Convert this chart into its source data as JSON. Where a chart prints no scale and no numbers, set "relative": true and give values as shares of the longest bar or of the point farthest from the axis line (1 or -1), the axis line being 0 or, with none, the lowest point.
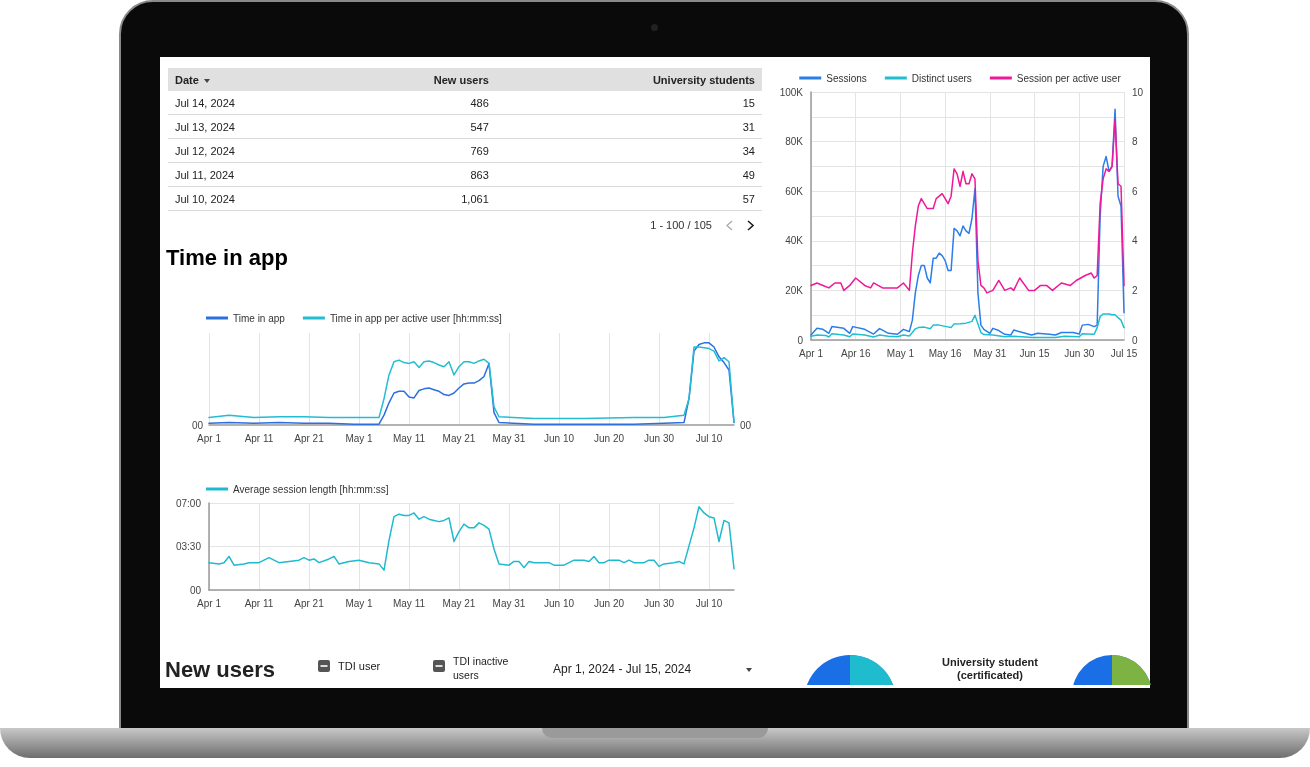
{
  "chart_data": [
    {
      "type": "other",
      "xlabel": "Date",
      "data_labels": true,
      "categories": [
        "Jul 14, 2024",
        "Jul 13, 2024",
        "Jul 12, 2024",
        "Jul 11, 2024",
        "Jul 10, 2024"
      ],
      "series": [
        {
          "name": "New users",
          "values": [
            486,
            547,
            769,
            863,
            1061
          ],
          "value_labels": [
            "486",
            "547",
            "769",
            "863",
            "1,061"
          ]
        },
        {
          "name": "University students",
          "values": [
            15,
            31,
            34,
            49,
            57
          ],
          "value_labels": [
            "15",
            "31",
            "34",
            "49",
            "57"
          ]
        }
      ],
      "annotations": [
        "1 - 100 / 105"
      ]
    },
    {
      "type": "line",
      "legend": "top",
      "grid": true,
      "marker": "none",
      "xlim": [
        "2024-04-01",
        "2024-07-15"
      ],
      "xticks": [
        {
          "value": "2024-04-01",
          "label": "Apr 1"
        },
        {
          "value": "2024-04-16",
          "label": "Apr 16"
        },
        {
          "value": "2024-05-01",
          "label": "May 1"
        },
        {
          "value": "2024-05-16",
          "label": "May 16"
        },
        {
          "value": "2024-05-31",
          "label": "May 31"
        },
        {
          "value": "2024-06-15",
          "label": "Jun 15"
        },
        {
          "value": "2024-06-30",
          "label": "Jun 30"
        },
        {
          "value": "2024-07-15",
          "label": "Jul 15"
        }
      ],
      "ylim": [
        0,
        100000
      ],
      "yticks": [
        {
          "value": 0,
          "label": "0"
        },
        {
          "value": 10000,
          "label": null
        },
        {
          "value": 20000,
          "label": "20K"
        },
        {
          "value": 30000,
          "label": null
        },
        {
          "value": 40000,
          "label": "40K"
        },
        {
          "value": 50000,
          "label": null
        },
        {
          "value": 60000,
          "label": "60K"
        },
        {
          "value": 70000,
          "label": null
        },
        {
          "value": 80000,
          "label": "80K"
        },
        {
          "value": 90000,
          "label": null
        },
        {
          "value": 100000,
          "label": "100K"
        }
      ],
      "y2lim": [
        0,
        10
      ],
      "y2ticks": [
        0,
        2,
        4,
        6,
        8,
        10
      ],
      "series": [
        {
          "name": "Sessions",
          "color": "#2b7de9",
          "x": [
            "2024-04-01",
            "2024-04-03",
            "2024-04-05",
            "2024-04-07",
            "2024-04-08",
            "2024-04-12",
            "2024-04-14",
            "2024-04-15",
            "2024-04-19",
            "2024-04-22",
            "2024-04-24",
            "2024-04-27",
            "2024-04-30",
            "2024-05-02",
            "2024-05-04",
            "2024-05-05",
            "2024-05-06",
            "2024-05-07",
            "2024-05-08",
            "2024-05-09",
            "2024-05-10",
            "2024-05-11",
            "2024-05-12",
            "2024-05-13",
            "2024-05-14",
            "2024-05-15",
            "2024-05-16",
            "2024-05-17",
            "2024-05-18",
            "2024-05-19",
            "2024-05-20",
            "2024-05-21",
            "2024-05-22",
            "2024-05-23",
            "2024-05-24",
            "2024-05-25",
            "2024-05-26",
            "2024-05-27",
            "2024-05-28",
            "2024-05-29",
            "2024-05-31",
            "2024-06-01",
            "2024-06-03",
            "2024-06-05",
            "2024-06-07",
            "2024-06-08",
            "2024-06-11",
            "2024-06-14",
            "2024-06-16",
            "2024-06-20",
            "2024-06-22",
            "2024-06-24",
            "2024-06-28",
            "2024-06-30",
            "2024-07-01",
            "2024-07-03",
            "2024-07-05",
            "2024-07-06",
            "2024-07-07",
            "2024-07-08",
            "2024-07-09",
            "2024-07-10",
            "2024-07-11",
            "2024-07-12",
            "2024-07-13",
            "2024-07-14",
            "2024-07-15"
          ],
          "values": [
            2000,
            4700,
            4300,
            2700,
            5400,
            4700,
            2700,
            5400,
            4300,
            2400,
            4600,
            2700,
            2300,
            4300,
            3400,
            8000,
            19000,
            26000,
            30000,
            30000,
            25000,
            23000,
            33000,
            33000,
            35000,
            34000,
            32000,
            28000,
            28000,
            45000,
            44000,
            42000,
            46000,
            44000,
            43000,
            49000,
            61000,
            19000,
            6000,
            4300,
            2700,
            4700,
            3800,
            2300,
            2000,
            4000,
            3000,
            2000,
            2700,
            2300,
            2000,
            3000,
            3000,
            2400,
            6000,
            6300,
            5400,
            6000,
            50000,
            70000,
            74000,
            68000,
            70000,
            93000,
            58000,
            54000,
            11000
          ]
        },
        {
          "name": "Distinct users",
          "color": "#1fbfd0",
          "x": [
            "2024-04-01",
            "2024-04-03",
            "2024-04-06",
            "2024-04-07",
            "2024-04-08",
            "2024-04-12",
            "2024-04-14",
            "2024-04-15",
            "2024-04-19",
            "2024-04-22",
            "2024-04-24",
            "2024-04-27",
            "2024-04-30",
            "2024-05-02",
            "2024-05-04",
            "2024-05-05",
            "2024-05-06",
            "2024-05-07",
            "2024-05-09",
            "2024-05-11",
            "2024-05-12",
            "2024-05-14",
            "2024-05-16",
            "2024-05-18",
            "2024-05-19",
            "2024-05-21",
            "2024-05-23",
            "2024-05-25",
            "2024-05-26",
            "2024-05-27",
            "2024-05-28",
            "2024-05-29",
            "2024-06-01",
            "2024-06-05",
            "2024-06-08",
            "2024-06-11",
            "2024-06-14",
            "2024-06-18",
            "2024-06-22",
            "2024-06-25",
            "2024-06-30",
            "2024-07-01",
            "2024-07-05",
            "2024-07-06",
            "2024-07-07",
            "2024-07-08",
            "2024-07-10",
            "2024-07-11",
            "2024-07-12",
            "2024-07-13",
            "2024-07-14",
            "2024-07-15"
          ],
          "values": [
            1500,
            2000,
            1800,
            1200,
            2500,
            2000,
            1300,
            2400,
            2000,
            1200,
            2000,
            1500,
            1300,
            2000,
            1600,
            3000,
            4500,
            5000,
            5200,
            4500,
            6000,
            6000,
            5500,
            5000,
            6500,
            6600,
            6800,
            7500,
            10000,
            6500,
            3000,
            2200,
            2000,
            1300,
            1500,
            1300,
            1000,
            1000,
            1000,
            1500,
            1300,
            2500,
            2300,
            5000,
            9500,
            10500,
            10500,
            10200,
            10200,
            9000,
            8000,
            5000
          ]
        },
        {
          "name": "Session per active user",
          "color": "#f0189a",
          "axis": "y2",
          "x": [
            "2024-04-01",
            "2024-04-03",
            "2024-04-05",
            "2024-04-07",
            "2024-04-09",
            "2024-04-11",
            "2024-04-12",
            "2024-04-14",
            "2024-04-16",
            "2024-04-19",
            "2024-04-21",
            "2024-04-22",
            "2024-04-25",
            "2024-04-28",
            "2024-04-30",
            "2024-05-02",
            "2024-05-04",
            "2024-05-05",
            "2024-05-06",
            "2024-05-07",
            "2024-05-08",
            "2024-05-09",
            "2024-05-10",
            "2024-05-12",
            "2024-05-13",
            "2024-05-15",
            "2024-05-17",
            "2024-05-18",
            "2024-05-19",
            "2024-05-20",
            "2024-05-21",
            "2024-05-22",
            "2024-05-23",
            "2024-05-24",
            "2024-05-25",
            "2024-05-26",
            "2024-05-27",
            "2024-05-28",
            "2024-05-29",
            "2024-05-30",
            "2024-06-01",
            "2024-06-03",
            "2024-06-05",
            "2024-06-07",
            "2024-06-08",
            "2024-06-10",
            "2024-06-13",
            "2024-06-15",
            "2024-06-17",
            "2024-06-19",
            "2024-06-21",
            "2024-06-24",
            "2024-06-27",
            "2024-06-29",
            "2024-07-02",
            "2024-07-04",
            "2024-07-05",
            "2024-07-06",
            "2024-07-07",
            "2024-07-08",
            "2024-07-09",
            "2024-07-10",
            "2024-07-11",
            "2024-07-12",
            "2024-07-13",
            "2024-07-14",
            "2024-07-15"
          ],
          "values": [
            2.2,
            2.3,
            2.2,
            2.1,
            2.3,
            2.3,
            2.0,
            2.2,
            2.5,
            2.2,
            2.1,
            2.3,
            2.1,
            2.1,
            2.1,
            2.3,
            2.0,
            3.5,
            4.6,
            5.4,
            5.7,
            5.5,
            5.3,
            5.3,
            5.7,
            5.9,
            5.5,
            5.8,
            6.9,
            6.7,
            6.2,
            6.8,
            6.3,
            6.3,
            6.7,
            6.5,
            3.2,
            2.2,
            2.1,
            1.9,
            2.0,
            2.4,
            2.0,
            2.1,
            2.0,
            2.5,
            2.0,
            2.0,
            2.2,
            2.2,
            2.0,
            2.3,
            2.2,
            2.4,
            2.6,
            2.7,
            2.5,
            2.6,
            5.5,
            6.5,
            6.9,
            6.8,
            7.0,
            8.9,
            6.3,
            6.2,
            2.2
          ]
        }
      ]
    },
    {
      "type": "line",
      "title": "Time in app",
      "relative": true,
      "legend": "top left",
      "grid": "x",
      "marker": "none",
      "xlim": [
        "2024-04-01",
        "2024-07-15"
      ],
      "xticks": [
        {
          "value": "2024-04-01",
          "label": "Apr 1"
        },
        {
          "value": "2024-04-11",
          "label": "Apr 11"
        },
        {
          "value": "2024-04-21",
          "label": "Apr 21"
        },
        {
          "value": "2024-05-01",
          "label": "May 1"
        },
        {
          "value": "2024-05-11",
          "label": "May 11"
        },
        {
          "value": "2024-05-21",
          "label": "May 21"
        },
        {
          "value": "2024-05-31",
          "label": "May 31"
        },
        {
          "value": "2024-06-10",
          "label": "Jun 10"
        },
        {
          "value": "2024-06-20",
          "label": "Jun 20"
        },
        {
          "value": "2024-06-30",
          "label": "Jun 30"
        },
        {
          "value": "2024-07-10",
          "label": "Jul 10"
        }
      ],
      "annotations": [
        {
          "text": "00",
          "x": "2024-04-01",
          "y": 0
        },
        {
          "text": "00",
          "x": "2024-07-15",
          "y": 0
        }
      ],
      "series": [
        {
          "name": "Time in app",
          "color": "#2b6fe0",
          "x": [
            "2024-04-01",
            "2024-04-05",
            "2024-04-10",
            "2024-04-15",
            "2024-04-20",
            "2024-04-25",
            "2024-04-30",
            "2024-05-05",
            "2024-05-06",
            "2024-05-07",
            "2024-05-08",
            "2024-05-09",
            "2024-05-10",
            "2024-05-11",
            "2024-05-12",
            "2024-05-13",
            "2024-05-14",
            "2024-05-15",
            "2024-05-16",
            "2024-05-17",
            "2024-05-18",
            "2024-05-19",
            "2024-05-20",
            "2024-05-21",
            "2024-05-22",
            "2024-05-23",
            "2024-05-24",
            "2024-05-25",
            "2024-05-26",
            "2024-05-27",
            "2024-05-28",
            "2024-05-29",
            "2024-06-05",
            "2024-06-15",
            "2024-06-25",
            "2024-07-01",
            "2024-07-05",
            "2024-07-06",
            "2024-07-07",
            "2024-07-08",
            "2024-07-09",
            "2024-07-10",
            "2024-07-11",
            "2024-07-12",
            "2024-07-13",
            "2024-07-14",
            "2024-07-15"
          ],
          "values": [
            0.02,
            0.03,
            0.02,
            0.03,
            0.02,
            0.02,
            0.01,
            0.01,
            0.12,
            0.27,
            0.39,
            0.41,
            0.41,
            0.34,
            0.33,
            0.42,
            0.44,
            0.45,
            0.43,
            0.41,
            0.37,
            0.36,
            0.39,
            0.45,
            0.5,
            0.51,
            0.51,
            0.54,
            0.59,
            0.75,
            0.15,
            0.03,
            0.01,
            0.01,
            0.01,
            0.02,
            0.03,
            0.32,
            0.9,
            0.98,
            1,
            1,
            0.95,
            0.83,
            0.76,
            0.67,
            0.03
          ]
        },
        {
          "name": "Time in app per active user [hh:mm:ss]",
          "color": "#22bdd3",
          "x": [
            "2024-04-01",
            "2024-04-05",
            "2024-04-10",
            "2024-04-15",
            "2024-04-20",
            "2024-04-25",
            "2024-04-30",
            "2024-05-05",
            "2024-05-06",
            "2024-05-07",
            "2024-05-08",
            "2024-05-09",
            "2024-05-10",
            "2024-05-11",
            "2024-05-12",
            "2024-05-13",
            "2024-05-14",
            "2024-05-15",
            "2024-05-16",
            "2024-05-17",
            "2024-05-18",
            "2024-05-19",
            "2024-05-20",
            "2024-05-21",
            "2024-05-22",
            "2024-05-23",
            "2024-05-24",
            "2024-05-25",
            "2024-05-26",
            "2024-05-27",
            "2024-05-28",
            "2024-05-29",
            "2024-06-05",
            "2024-06-15",
            "2024-06-25",
            "2024-07-01",
            "2024-07-05",
            "2024-07-06",
            "2024-07-07",
            "2024-07-08",
            "2024-07-09",
            "2024-07-10",
            "2024-07-11",
            "2024-07-12",
            "2024-07-13",
            "2024-07-14",
            "2024-07-15"
          ],
          "values": [
            0.09,
            0.12,
            0.09,
            0.1,
            0.1,
            0.09,
            0.09,
            0.09,
            0.32,
            0.61,
            0.77,
            0.79,
            0.76,
            0.75,
            0.77,
            0.7,
            0.77,
            0.78,
            0.76,
            0.73,
            0.71,
            0.77,
            0.61,
            0.71,
            0.77,
            0.77,
            0.75,
            0.78,
            0.8,
            0.75,
            0.22,
            0.1,
            0.08,
            0.08,
            0.09,
            0.09,
            0.12,
            0.32,
            0.95,
            0.95,
            0.94,
            0.93,
            0.9,
            0.78,
            0.82,
            0.77,
            0.03
          ]
        }
      ]
    },
    {
      "type": "line",
      "legend": "top left",
      "grid": true,
      "marker": "none",
      "xlim": [
        "2024-04-01",
        "2024-07-15"
      ],
      "xticks": [
        {
          "value": "2024-04-01",
          "label": "Apr 1"
        },
        {
          "value": "2024-04-11",
          "label": "Apr 11"
        },
        {
          "value": "2024-04-21",
          "label": "Apr 21"
        },
        {
          "value": "2024-05-01",
          "label": "May 1"
        },
        {
          "value": "2024-05-11",
          "label": "May 11"
        },
        {
          "value": "2024-05-21",
          "label": "May 21"
        },
        {
          "value": "2024-05-31",
          "label": "May 31"
        },
        {
          "value": "2024-06-10",
          "label": "Jun 10"
        },
        {
          "value": "2024-06-20",
          "label": "Jun 20"
        },
        {
          "value": "2024-06-30",
          "label": "Jun 30"
        },
        {
          "value": "2024-07-10",
          "label": "Jul 10"
        }
      ],
      "ylim": [
        0,
        7
      ],
      "yticks": [
        {
          "value": 0,
          "label": "00"
        },
        {
          "value": 3.5,
          "label": "03:30"
        },
        {
          "value": 7,
          "label": "07:00"
        }
      ],
      "series": [
        {
          "name": "Average session length [hh:mm:ss]",
          "color": "#1fbad0",
          "x": [
            "2024-04-01",
            "2024-04-03",
            "2024-04-04",
            "2024-04-05",
            "2024-04-06",
            "2024-04-08",
            "2024-04-09",
            "2024-04-11",
            "2024-04-12",
            "2024-04-13",
            "2024-04-14",
            "2024-04-15",
            "2024-04-17",
            "2024-04-19",
            "2024-04-20",
            "2024-04-21",
            "2024-04-22",
            "2024-04-23",
            "2024-04-25",
            "2024-04-26",
            "2024-04-27",
            "2024-04-29",
            "2024-05-01",
            "2024-05-03",
            "2024-05-05",
            "2024-05-06",
            "2024-05-07",
            "2024-05-08",
            "2024-05-09",
            "2024-05-10",
            "2024-05-11",
            "2024-05-12",
            "2024-05-13",
            "2024-05-14",
            "2024-05-15",
            "2024-05-16",
            "2024-05-17",
            "2024-05-18",
            "2024-05-19",
            "2024-05-20",
            "2024-05-21",
            "2024-05-22",
            "2024-05-23",
            "2024-05-24",
            "2024-05-25",
            "2024-05-26",
            "2024-05-27",
            "2024-05-28",
            "2024-05-29",
            "2024-05-31",
            "2024-06-01",
            "2024-06-02",
            "2024-06-03",
            "2024-06-04",
            "2024-06-05",
            "2024-06-07",
            "2024-06-08",
            "2024-06-09",
            "2024-06-10",
            "2024-06-11",
            "2024-06-12",
            "2024-06-13",
            "2024-06-15",
            "2024-06-16",
            "2024-06-17",
            "2024-06-18",
            "2024-06-19",
            "2024-06-20",
            "2024-06-22",
            "2024-06-23",
            "2024-06-24",
            "2024-06-25",
            "2024-06-26",
            "2024-06-27",
            "2024-06-28",
            "2024-06-29",
            "2024-06-30",
            "2024-07-01",
            "2024-07-03",
            "2024-07-04",
            "2024-07-05",
            "2024-07-07",
            "2024-07-08",
            "2024-07-09",
            "2024-07-10",
            "2024-07-11",
            "2024-07-12",
            "2024-07-13",
            "2024-07-14",
            "2024-07-15"
          ],
          "values": [
            2.2,
            2.1,
            2.2,
            2.7,
            2.0,
            2.1,
            2.2,
            2.2,
            2.4,
            2.6,
            2.4,
            2.2,
            2.3,
            2.4,
            2.6,
            2.4,
            2.5,
            2.2,
            2.5,
            2.7,
            2.1,
            2.3,
            2.4,
            2.2,
            2.1,
            1.6,
            4.0,
            5.9,
            6.1,
            6.0,
            6.0,
            6.2,
            5.7,
            5.9,
            5.7,
            5.6,
            5.5,
            5.6,
            5.8,
            3.9,
            4.7,
            5.3,
            5.0,
            5.0,
            5.4,
            5.2,
            4.9,
            3.3,
            2.1,
            2.0,
            2.3,
            2.3,
            1.8,
            2.3,
            2.2,
            2.2,
            2.2,
            2.0,
            2.0,
            2.0,
            2.2,
            2.4,
            2.4,
            2.3,
            2.7,
            2.2,
            2.2,
            2.4,
            2.4,
            2.2,
            2.4,
            2.2,
            2.2,
            2.2,
            2.4,
            2.4,
            1.9,
            2.1,
            2.2,
            2.3,
            2.1,
            5.0,
            6.7,
            6.2,
            5.9,
            5.8,
            3.9,
            5.6,
            5.4,
            1.7
          ]
        }
      ]
    },
    {
      "type": "other",
      "title": "New users",
      "annotations": [
        "TDI user",
        "TDI inactive users",
        "Apr 1, 2024 - Jul 15, 2024",
        "University student (certificated)"
      ]
    }
  ]
}
